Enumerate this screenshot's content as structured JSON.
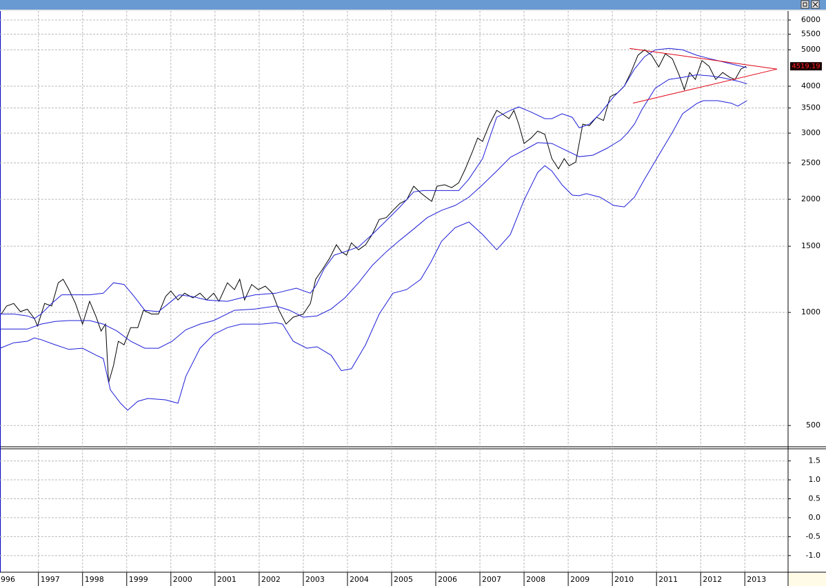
{
  "chart_data": [
    {
      "type": "line",
      "log_scale": true,
      "grid": true,
      "xlim": [
        1996.13,
        2013.98
      ],
      "xticks": [
        {
          "value": 1996,
          "label": "996"
        },
        1997,
        1998,
        1999,
        2000,
        2001,
        2002,
        2003,
        2004,
        2005,
        2006,
        2007,
        2008,
        2009,
        2010,
        2011,
        2012,
        2013
      ],
      "ylim": [
        439,
        6340
      ],
      "yticks": [
        500,
        1000,
        1500,
        2000,
        2500,
        3000,
        3500,
        4000,
        5000,
        5500,
        6000
      ],
      "last_value": 4519.19,
      "last_value_color": "#ff2020",
      "series": [
        {
          "color": "#000000",
          "x": [
            1996.16,
            1996.28,
            1996.44,
            1996.59,
            1996.75,
            1996.91,
            1996.98,
            1997.14,
            1997.3,
            1997.45,
            1997.56,
            1997.69,
            1997.84,
            1998.0,
            1998.16,
            1998.31,
            1998.42,
            1998.52,
            1998.59,
            1998.7,
            1998.81,
            1998.94,
            1999.09,
            1999.25,
            1999.38,
            1999.56,
            1999.72,
            1999.88,
            2000.0,
            2000.16,
            2000.31,
            2000.5,
            2000.66,
            2000.81,
            2000.97,
            2001.09,
            2001.28,
            2001.44,
            2001.56,
            2001.67,
            2001.83,
            2001.98,
            2002.14,
            2002.3,
            2002.45,
            2002.61,
            2002.77,
            2003.0,
            2003.16,
            2003.28,
            2003.44,
            2003.59,
            2003.75,
            2003.86,
            2003.98,
            2004.09,
            2004.25,
            2004.41,
            2004.56,
            2004.72,
            2004.88,
            2005.03,
            2005.19,
            2005.34,
            2005.5,
            2005.66,
            2005.78,
            2005.91,
            2006.03,
            2006.2,
            2006.36,
            2006.52,
            2006.67,
            2006.83,
            2006.95,
            2007.06,
            2007.22,
            2007.38,
            2007.5,
            2007.66,
            2007.77,
            2007.88,
            2008.0,
            2008.16,
            2008.31,
            2008.47,
            2008.63,
            2008.78,
            2008.91,
            2009.02,
            2009.17,
            2009.33,
            2009.48,
            2009.64,
            2009.8,
            2009.95,
            2010.11,
            2010.27,
            2010.42,
            2010.58,
            2010.73,
            2010.89,
            2011.05,
            2011.2,
            2011.36,
            2011.52,
            2011.63,
            2011.75,
            2011.88,
            2012.03,
            2012.19,
            2012.34,
            2012.5,
            2012.66,
            2012.78,
            2012.91,
            2013.03
          ],
          "values": [
            990,
            1040,
            1056,
            1005,
            1020,
            963,
            920,
            1056,
            1040,
            1199,
            1225,
            1150,
            1056,
            931,
            1070,
            971,
            892,
            931,
            650,
            722,
            838,
            820,
            911,
            911,
            1013,
            990,
            990,
            1102,
            1140,
            1079,
            1125,
            1093,
            1125,
            1079,
            1125,
            1070,
            1199,
            1150,
            1225,
            1079,
            1187,
            1150,
            1175,
            1125,
            1013,
            931,
            971,
            990,
            1056,
            1225,
            1305,
            1390,
            1514,
            1450,
            1420,
            1532,
            1468,
            1514,
            1612,
            1768,
            1788,
            1868,
            1951,
            1991,
            2167,
            2079,
            2026,
            1975,
            2167,
            2186,
            2148,
            2212,
            2410,
            2678,
            2912,
            2852,
            3170,
            3449,
            3378,
            3278,
            3449,
            3170,
            2816,
            2912,
            3038,
            2978,
            2566,
            2410,
            2566,
            2458,
            2511,
            3170,
            3140,
            3306,
            3243,
            3750,
            3833,
            4000,
            4350,
            4835,
            5000,
            4835,
            4500,
            4880,
            4730,
            4260,
            3915,
            4350,
            4170,
            4680,
            4520,
            4170,
            4350,
            4220,
            4170,
            4443,
            4519.19
          ]
        },
        {
          "color": "#1c1cd8",
          "x": [
            1996.13,
            1996.44,
            1996.75,
            1996.91,
            1997.06,
            1997.3,
            1997.53,
            1997.69,
            1998.16,
            1998.47,
            1998.7,
            1998.94,
            1999.17,
            1999.41,
            1999.72,
            1999.95,
            2000.19,
            2000.5,
            2000.81,
            2001.28,
            2001.59,
            2001.91,
            2002.38,
            2002.84,
            2003.16,
            2003.28,
            2003.47,
            2003.7,
            2003.94,
            2004.25,
            2004.56,
            2004.88,
            2005.19,
            2005.5,
            2005.73,
            2006.13,
            2006.52,
            2006.75,
            2007.06,
            2007.38,
            2007.69,
            2007.88,
            2008.16,
            2008.47,
            2008.63,
            2008.86,
            2009.09,
            2009.25,
            2009.48,
            2009.72,
            2010.03,
            2010.27,
            2010.5,
            2010.73,
            2010.97,
            2011.28,
            2011.59,
            2011.91,
            2012.22,
            2012.53,
            2012.84,
            2013.05
          ],
          "values": [
            990,
            990,
            979,
            963,
            990,
            1056,
            1114,
            1114,
            1114,
            1125,
            1199,
            1187,
            1102,
            1013,
            1005,
            1056,
            1114,
            1102,
            1079,
            1070,
            1093,
            1114,
            1125,
            1160,
            1125,
            1175,
            1305,
            1420,
            1450,
            1494,
            1612,
            1755,
            1909,
            2093,
            2110,
            2110,
            2110,
            2263,
            2566,
            3306,
            3449,
            3523,
            3413,
            3278,
            3278,
            3378,
            3306,
            3099,
            3170,
            3378,
            3750,
            4000,
            4443,
            4793,
            4998,
            5043,
            4998,
            4835,
            4730,
            4635,
            4540,
            4480
          ]
        },
        {
          "color": "#1c1cd8",
          "x": [
            1996.13,
            1996.44,
            1996.75,
            1997.06,
            1997.38,
            1997.69,
            1998.16,
            1998.47,
            1998.78,
            1999.09,
            1999.41,
            1999.72,
            2000.03,
            2000.34,
            2000.66,
            2000.97,
            2001.44,
            2001.91,
            2002.38,
            2002.69,
            2003.0,
            2003.31,
            2003.63,
            2003.94,
            2004.25,
            2004.56,
            2004.88,
            2005.19,
            2005.5,
            2005.81,
            2006.13,
            2006.44,
            2006.75,
            2007.06,
            2007.38,
            2007.69,
            2008.0,
            2008.31,
            2008.63,
            2008.94,
            2009.25,
            2009.56,
            2009.88,
            2010.19,
            2010.34,
            2010.5,
            2010.66,
            2010.97,
            2011.28,
            2011.59,
            2011.91,
            2012.22,
            2012.53,
            2012.84,
            2013.05
          ],
          "values": [
            903,
            903,
            903,
            931,
            946,
            951,
            951,
            931,
            892,
            838,
            803,
            803,
            838,
            899,
            931,
            951,
            1013,
            1021,
            1040,
            1013,
            971,
            979,
            1021,
            1093,
            1199,
            1333,
            1450,
            1557,
            1667,
            1788,
            1868,
            1926,
            2026,
            2186,
            2378,
            2587,
            2703,
            2830,
            2816,
            2703,
            2597,
            2621,
            2735,
            2878,
            3000,
            3170,
            3449,
            3950,
            4170,
            4220,
            4290,
            4260,
            4205,
            4125,
            4060
          ]
        },
        {
          "color": "#1c1cd8",
          "x": [
            1996.13,
            1996.44,
            1996.75,
            1996.91,
            1997.06,
            1997.38,
            1997.69,
            1998.0,
            1998.31,
            1998.47,
            1998.63,
            1998.86,
            1999.02,
            1999.25,
            1999.48,
            1999.88,
            2000.16,
            2000.34,
            2000.66,
            2000.97,
            2001.28,
            2001.59,
            2002.06,
            2002.38,
            2002.53,
            2002.77,
            2003.08,
            2003.31,
            2003.63,
            2003.86,
            2004.09,
            2004.41,
            2004.72,
            2005.03,
            2005.34,
            2005.66,
            2005.89,
            2006.13,
            2006.44,
            2006.75,
            2007.06,
            2007.38,
            2007.69,
            2008.0,
            2008.31,
            2008.47,
            2008.63,
            2008.86,
            2009.09,
            2009.25,
            2009.41,
            2009.72,
            2010.03,
            2010.27,
            2010.5,
            2010.73,
            2011.05,
            2011.36,
            2011.59,
            2011.91,
            2012.06,
            2012.38,
            2012.69,
            2012.84,
            2013.05
          ],
          "values": [
            803,
            830,
            838,
            855,
            846,
            820,
            797,
            803,
            769,
            754,
            622,
            573,
            549,
            580,
            590,
            585,
            573,
            676,
            803,
            874,
            911,
            931,
            931,
            939,
            931,
            838,
            803,
            810,
            769,
            700,
            708,
            820,
            990,
            1125,
            1150,
            1225,
            1361,
            1545,
            1681,
            1740,
            1612,
            1468,
            1612,
            1991,
            2358,
            2458,
            2378,
            2186,
            2052,
            2044,
            2070,
            2026,
            1926,
            1909,
            2026,
            2263,
            2621,
            3014,
            3378,
            3597,
            3660,
            3660,
            3605,
            3540,
            3660
          ]
        },
        {
          "color": "#e00010",
          "x": [
            2010.39,
            2013.73
          ],
          "values": [
            5043,
            4443
          ]
        },
        {
          "color": "#e00010",
          "x": [
            2010.47,
            2013.73
          ],
          "values": [
            3605,
            4443
          ]
        }
      ]
    },
    {
      "type": "line",
      "grid": true,
      "ylim": [
        -1.44,
        1.82
      ],
      "yticks": [
        1.5,
        {
          "value": 1,
          "label": "1.0"
        },
        0.5,
        {
          "value": 0,
          "label": "0.0"
        },
        -0.5,
        {
          "value": -1,
          "label": "-1.0"
        }
      ],
      "series": []
    }
  ]
}
